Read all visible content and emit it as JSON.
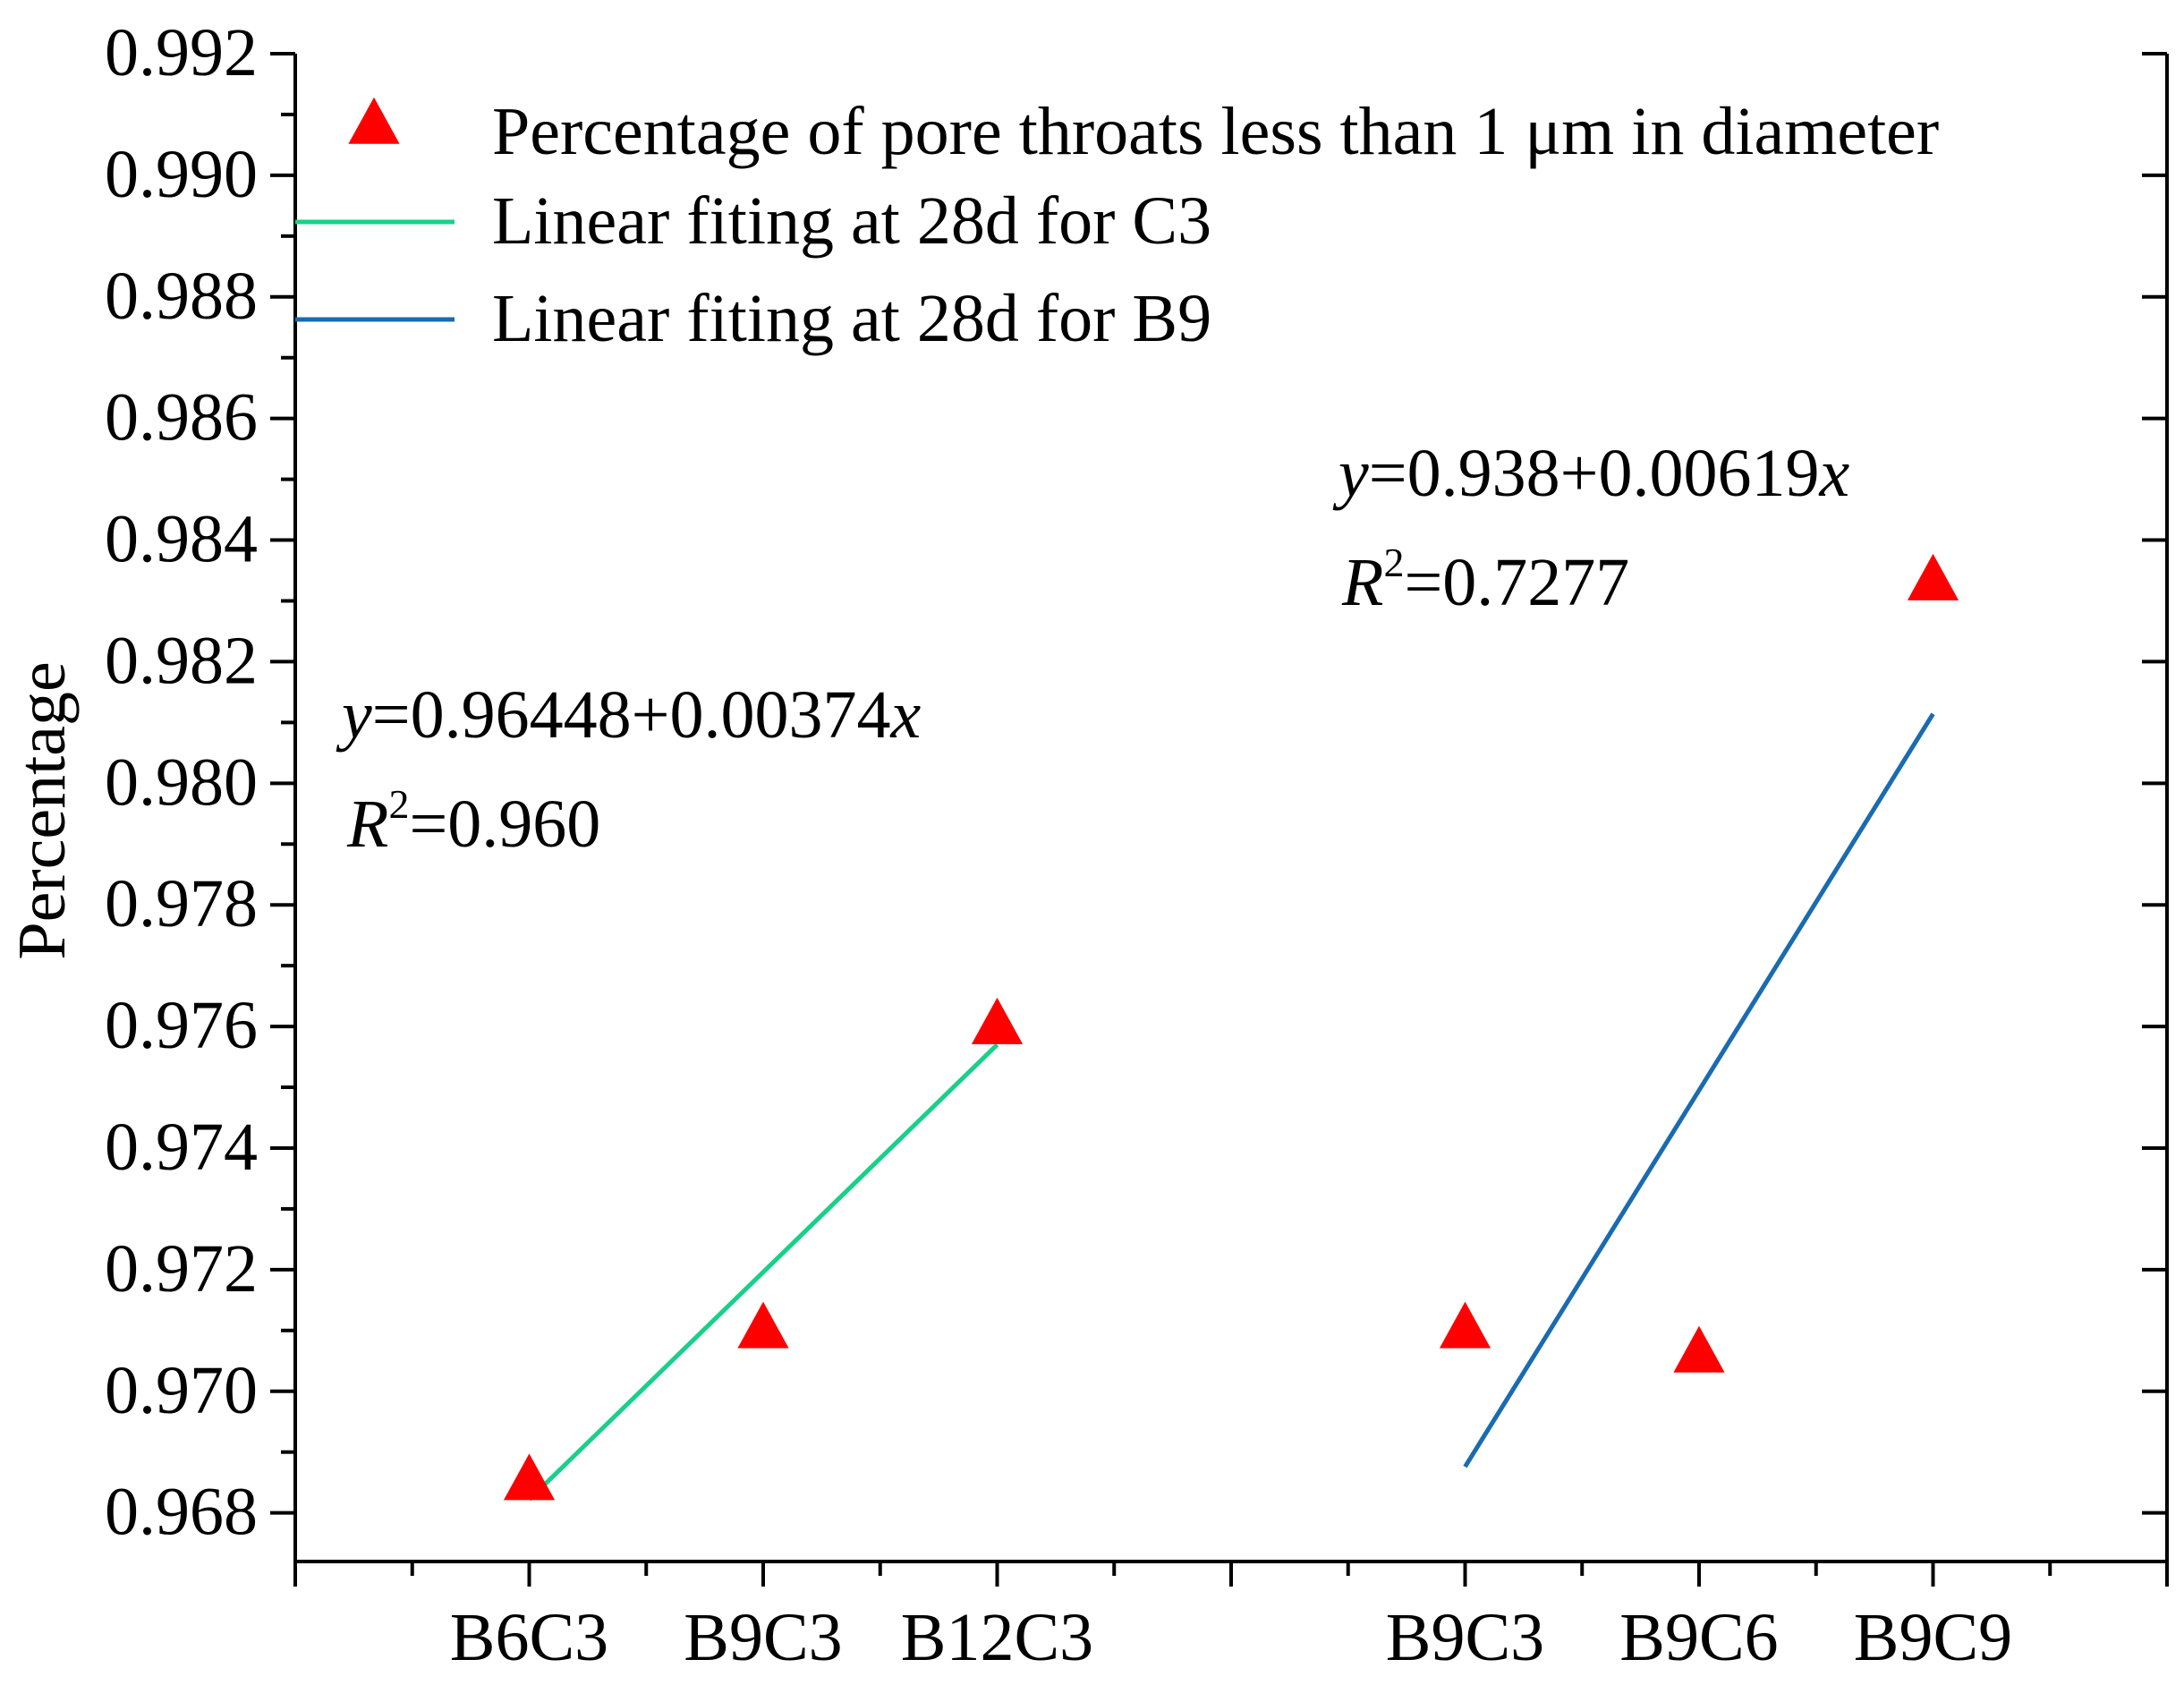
{
  "chart_data": {
    "type": "scatter",
    "title": "",
    "xlabel": "",
    "ylabel": "Percentage",
    "ylim": [
      0.9672,
      0.992
    ],
    "y_ticks": [
      "0.968",
      "0.970",
      "0.972",
      "0.974",
      "0.976",
      "0.978",
      "0.980",
      "0.982",
      "0.984",
      "0.986",
      "0.988",
      "0.990",
      "0.992"
    ],
    "x_positions": [
      1,
      2,
      3,
      5,
      6,
      7
    ],
    "xlim": [
      0,
      8
    ],
    "categories": [
      "B6C3",
      "B9C3",
      "B12C3",
      "B9C3",
      "B9C6",
      "B9C9"
    ],
    "series": [
      {
        "name": "Percentage of pore throats less than 1 μm in diameter",
        "kind": "points",
        "marker": "triangle",
        "color": "#ff0000",
        "x": [
          1,
          2,
          3,
          5,
          6,
          7
        ],
        "values": [
          0.9685,
          0.971,
          0.976,
          0.971,
          0.9706,
          0.9833
        ]
      },
      {
        "name": "Linear fiting at 28d for C3",
        "kind": "line",
        "color": "#19d08a",
        "x": [
          1,
          3
        ],
        "values": [
          0.96822,
          0.9757
        ]
      },
      {
        "name": "Linear fiting at 28d for B9",
        "kind": "line",
        "color": "#1a6bb0",
        "x": [
          5,
          7
        ],
        "values": [
          0.96876,
          0.98114
        ]
      }
    ],
    "legend_position": "top-left",
    "annotations": [
      {
        "name": "c3-fit",
        "eq_prefix": "y",
        "eq_body": "=0.96448+0.00374",
        "eq_suffix": "x",
        "r2_prefix": "R",
        "r2_sup": "2",
        "r2_body": "=0.960"
      },
      {
        "name": "b9-fit",
        "eq_prefix": "y",
        "eq_body": "=0.938+0.00619",
        "eq_suffix": "x",
        "r2_prefix": "R",
        "r2_sup": "2",
        "r2_body": "=0.7277"
      }
    ]
  }
}
